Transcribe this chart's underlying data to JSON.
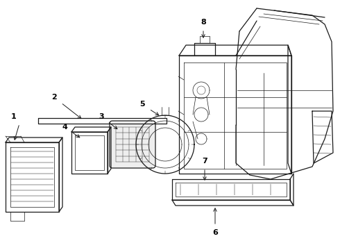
{
  "bg_color": "#ffffff",
  "line_color": "#1a1a1a",
  "lw": 0.9,
  "tlw": 0.5,
  "fig_width": 4.9,
  "fig_height": 3.6,
  "dpi": 100,
  "label_fontsize": 8,
  "label_fontweight": "bold"
}
